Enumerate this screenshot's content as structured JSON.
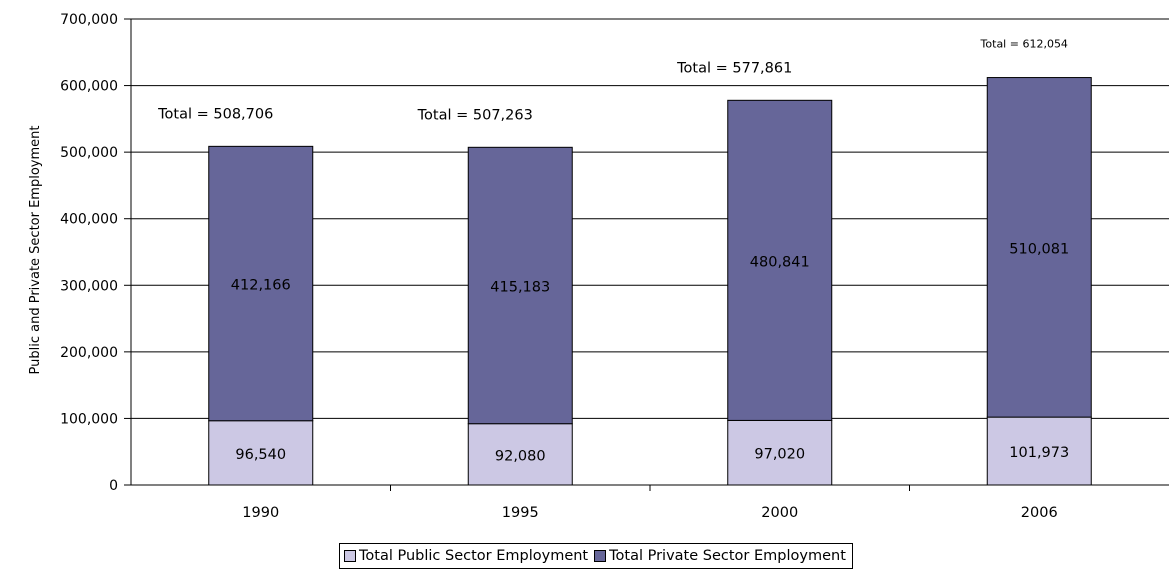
{
  "chart_data": {
    "type": "bar",
    "stacked": true,
    "categories": [
      "1990",
      "1995",
      "2000",
      "2006"
    ],
    "series": [
      {
        "name": "Total Public Sector Employment",
        "values": [
          96540,
          92080,
          97020,
          101973
        ],
        "color": "#ccc8e4"
      },
      {
        "name": "Total Private Sector Employment",
        "values": [
          412166,
          415183,
          480841,
          510081
        ],
        "color": "#666699"
      }
    ],
    "total_labels": [
      "Total =  508,706",
      "Total =  507,263",
      "Total =  577,861",
      "Total = 612,054"
    ],
    "ylabel": "Public and Private Sector Employment",
    "xlabel": "",
    "title": "",
    "ylim": [
      0,
      700000
    ],
    "yticks": [
      0,
      100000,
      200000,
      300000,
      400000,
      500000,
      600000,
      700000
    ],
    "grid": true,
    "legend": "bottom"
  }
}
